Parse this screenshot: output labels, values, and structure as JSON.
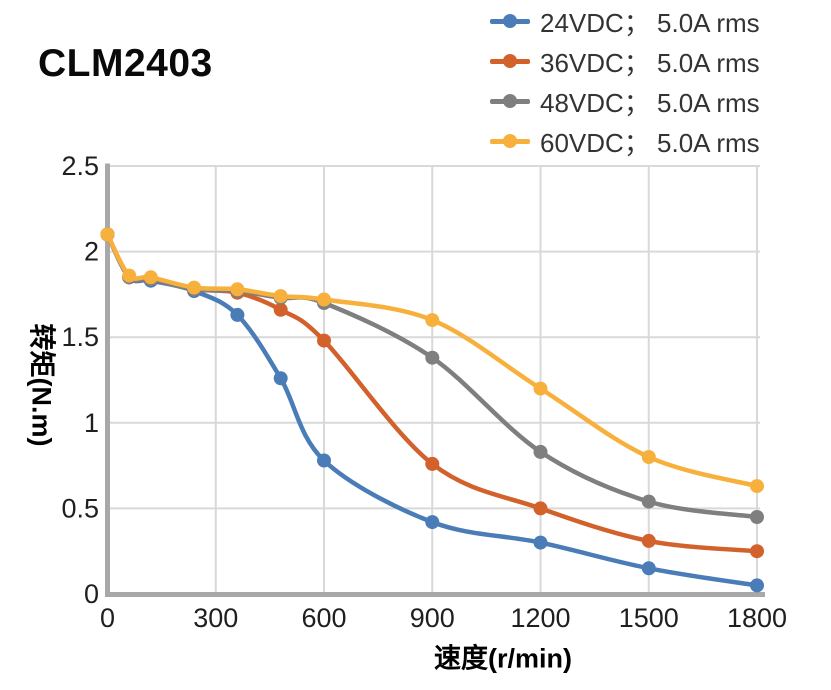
{
  "title": "CLM2403",
  "style": {
    "axis_color": "#A8A8A8",
    "grid_color": "#D9D9D9",
    "tick_text_color": "#1F1F1F",
    "title_color": "#0A0A0A",
    "legend_text_color": "#333333",
    "background": "#FFFFFF"
  },
  "chart_data": {
    "type": "line",
    "title": "CLM2403",
    "xlabel": "速度(r/min)",
    "ylabel": "转矩(N.m)",
    "xlim": [
      0,
      1800
    ],
    "ylim": [
      0,
      2.5
    ],
    "xticks": [
      0,
      300,
      600,
      900,
      1200,
      1500,
      1800
    ],
    "yticks": [
      0,
      0.5,
      1,
      1.5,
      2,
      2.5
    ],
    "grid": true,
    "legend_position": "top-right",
    "marker": "circle",
    "smooth": true,
    "x": [
      0,
      60,
      120,
      240,
      360,
      480,
      600,
      900,
      1200,
      1500,
      1800
    ],
    "series": [
      {
        "id": "24vdc",
        "name": "24VDC； 5.0A rms",
        "color": "#4A7CB8",
        "values": [
          2.1,
          1.85,
          1.83,
          1.77,
          1.63,
          1.26,
          0.78,
          0.42,
          0.3,
          0.15,
          0.05
        ]
      },
      {
        "id": "36vdc",
        "name": "36VDC； 5.0A rms",
        "color": "#D2612B",
        "values": [
          2.1,
          1.85,
          1.84,
          1.78,
          1.76,
          1.66,
          1.48,
          0.76,
          0.5,
          0.31,
          0.25
        ]
      },
      {
        "id": "48vdc",
        "name": "48VDC； 5.0A rms",
        "color": "#7F7F7F",
        "values": [
          2.1,
          1.85,
          1.84,
          1.78,
          1.77,
          1.73,
          1.7,
          1.38,
          0.83,
          0.54,
          0.45
        ]
      },
      {
        "id": "60vdc",
        "name": "60VDC； 5.0A rms",
        "color": "#F7B03C",
        "values": [
          2.1,
          1.86,
          1.85,
          1.79,
          1.78,
          1.74,
          1.72,
          1.6,
          1.2,
          0.8,
          0.63
        ]
      }
    ]
  }
}
